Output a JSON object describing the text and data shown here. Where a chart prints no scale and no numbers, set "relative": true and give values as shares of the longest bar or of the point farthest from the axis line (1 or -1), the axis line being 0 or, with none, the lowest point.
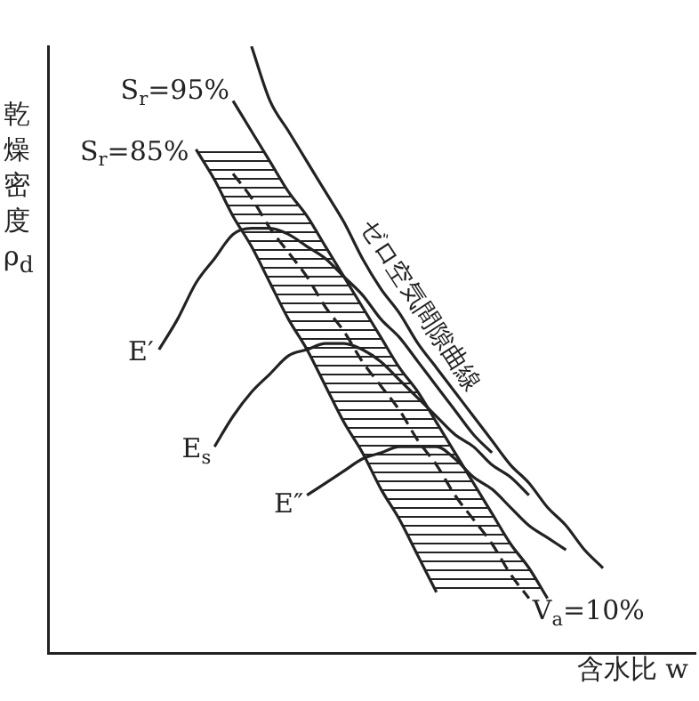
{
  "chart_data": {
    "type": "line",
    "relative": true,
    "legend": false,
    "marker": "none",
    "xlabel": "含水比 w",
    "ylabel": "乾燥密度 ρ$_{d}$",
    "categories": [
      null,
      null,
      null,
      null,
      null,
      null,
      null,
      null,
      null,
      null,
      null,
      null,
      null,
      null,
      null,
      null,
      null,
      null,
      null,
      null,
      null,
      null,
      null,
      null,
      null,
      null,
      null,
      null,
      null,
      null,
      null,
      null,
      null,
      null,
      null,
      null
    ],
    "series": [
      {
        "name": "S$_{r}$=95%",
        "color": "#222222",
        "values": [
          null,
          null,
          null,
          null,
          null,
          null,
          null,
          null,
          null,
          null,
          0.91,
          0.86,
          0.81,
          0.76,
          0.72,
          0.67,
          0.62,
          0.57,
          0.52,
          0.47,
          0.43,
          0.38,
          0.33,
          0.28,
          0.23,
          0.18,
          0.14,
          0.09,
          null,
          null,
          null,
          null,
          null,
          null,
          null,
          null
        ]
      },
      {
        "name": "S$_{r}$=85%",
        "color": "#222222",
        "values": [
          null,
          null,
          null,
          null,
          null,
          null,
          null,
          null,
          0.83,
          0.78,
          0.72,
          0.67,
          0.61,
          0.55,
          0.5,
          0.44,
          0.38,
          0.33,
          0.27,
          0.22,
          0.16,
          0.1,
          null,
          null,
          null,
          null,
          null,
          null,
          null,
          null,
          null,
          null,
          null,
          null,
          null,
          null
        ]
      },
      {
        "name": "V$_{a}$=10%",
        "color": "#222222",
        "line_style": "dashed",
        "values": [
          null,
          null,
          null,
          null,
          null,
          null,
          null,
          null,
          null,
          null,
          0.79,
          0.75,
          0.7,
          0.66,
          0.62,
          0.57,
          0.53,
          0.48,
          0.44,
          0.4,
          0.35,
          0.31,
          0.26,
          0.22,
          0.18,
          0.13,
          0.09,
          null,
          null,
          null,
          null,
          null,
          null,
          null,
          null,
          null
        ]
      },
      {
        "name": "ゼロ空気間隙曲線",
        "color": "#222222",
        "values": [
          null,
          null,
          null,
          null,
          null,
          null,
          null,
          null,
          null,
          null,
          null,
          1,
          0.91,
          0.86,
          0.81,
          0.76,
          0.71,
          0.65,
          0.6,
          0.56,
          0.51,
          0.47,
          0.43,
          0.39,
          0.35,
          0.31,
          0.28,
          0.24,
          0.21,
          0.17,
          0.14,
          null,
          null,
          null,
          null,
          null
        ]
      },
      {
        "name": "E′",
        "color": "#222222",
        "values": [
          null,
          null,
          null,
          null,
          null,
          null,
          0.5,
          0.55,
          0.61,
          0.65,
          0.69,
          0.7,
          0.7,
          0.69,
          0.67,
          0.65,
          0.62,
          0.59,
          0.55,
          0.52,
          0.48,
          0.44,
          0.4,
          0.36,
          0.33,
          null,
          null,
          null,
          null,
          null,
          null,
          null,
          null,
          null,
          null,
          null
        ]
      },
      {
        "name": "E$_{s}$",
        "color": "#222222",
        "values": [
          null,
          null,
          null,
          null,
          null,
          null,
          null,
          null,
          null,
          0.34,
          0.39,
          0.43,
          0.46,
          0.49,
          0.5,
          0.51,
          0.51,
          0.5,
          0.48,
          0.45,
          0.42,
          0.39,
          0.36,
          0.34,
          0.31,
          0.29,
          0.26,
          null,
          null,
          null,
          null,
          null,
          null,
          null,
          null,
          null
        ]
      },
      {
        "name": "E″",
        "color": "#222222",
        "values": [
          null,
          null,
          null,
          null,
          null,
          null,
          null,
          null,
          null,
          null,
          null,
          null,
          null,
          null,
          0.26,
          0.28,
          0.3,
          0.32,
          0.33,
          0.34,
          0.34,
          0.34,
          0.32,
          0.29,
          0.27,
          0.24,
          0.21,
          0.19,
          0.17,
          null,
          null,
          null,
          null,
          null,
          null,
          null
        ]
      }
    ]
  }
}
